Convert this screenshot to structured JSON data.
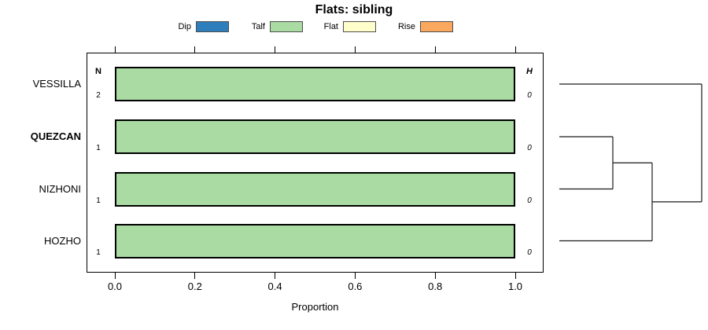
{
  "title": "Flats: sibling",
  "legend": {
    "items": [
      {
        "label": "Dip",
        "color": "#2E7EBB"
      },
      {
        "label": "Talf",
        "color": "#A9DBA3"
      },
      {
        "label": "Flat",
        "color": "#FFFFCC"
      },
      {
        "label": "Rise",
        "color": "#FAA85E"
      }
    ]
  },
  "chart_data": {
    "type": "bar",
    "orientation": "horizontal",
    "stacked": true,
    "title": "Flats: sibling",
    "xlabel": "Proportion",
    "xlim": [
      0,
      1
    ],
    "xticks": [
      0,
      0.2,
      0.4,
      0.6,
      0.8,
      1.0
    ],
    "xtick_labels": [
      "0.0",
      "0.2",
      "0.4",
      "0.6",
      "0.8",
      "1.0"
    ],
    "grid": false,
    "legend_position": "top",
    "categories": [
      "VESSILLA",
      "QUEZCAN",
      "NIZHONI",
      "HOZHO"
    ],
    "emphasized_category": "QUEZCAN",
    "series": [
      {
        "name": "Dip",
        "color": "#2E7EBB",
        "values": [
          0,
          0,
          0,
          0
        ]
      },
      {
        "name": "Talf",
        "color": "#A9DBA3",
        "values": [
          1.0,
          1.0,
          1.0,
          1.0
        ]
      },
      {
        "name": "Flat",
        "color": "#FFFFCC",
        "values": [
          0,
          0,
          0,
          0
        ]
      },
      {
        "name": "Rise",
        "color": "#FAA85E",
        "values": [
          0,
          0,
          0,
          0
        ]
      }
    ],
    "n_column": {
      "header": "N",
      "values": [
        "2",
        "1",
        "1",
        "1"
      ]
    },
    "h_column": {
      "header": "H",
      "values": [
        "0",
        "0",
        "0",
        "0"
      ]
    },
    "dendrogram": {
      "side": "right",
      "leaf_order": [
        "VESSILLA",
        "QUEZCAN",
        "NIZHONI",
        "HOZHO"
      ],
      "merges": [
        {
          "join": [
            "QUEZCAN",
            "NIZHONI"
          ]
        },
        {
          "join": [
            "QUEZCAN+NIZHONI",
            "HOZHO"
          ]
        },
        {
          "join": [
            "QUEZCAN+NIZHONI+HOZHO",
            "VESSILLA"
          ]
        }
      ]
    }
  }
}
